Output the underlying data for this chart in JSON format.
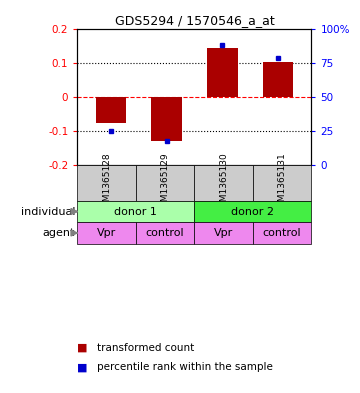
{
  "title": "GDS5294 / 1570546_a_at",
  "samples": [
    "GSM1365128",
    "GSM1365129",
    "GSM1365130",
    "GSM1365131"
  ],
  "red_values": [
    -0.075,
    -0.13,
    0.145,
    0.105
  ],
  "blue_values": [
    -0.1,
    -0.13,
    0.155,
    0.115
  ],
  "ylim": [
    -0.2,
    0.2
  ],
  "yticks_left": [
    -0.2,
    -0.1,
    0.0,
    0.1,
    0.2
  ],
  "ytick_labels_left": [
    "-0.2",
    "-0.1",
    "0",
    "0.1",
    "0.2"
  ],
  "ytick_labels_right": [
    "0",
    "25",
    "50",
    "75",
    "100%"
  ],
  "bar_color": "#aa0000",
  "dot_color": "#0000cc",
  "sample_bg": "#cccccc",
  "donor1_color": "#aaffaa",
  "donor2_color": "#44ee44",
  "agent_color": "#ee88ee",
  "individual_label": "individual",
  "agent_label": "agent",
  "donor1_text": "donor 1",
  "donor2_text": "donor 2",
  "agent_texts": [
    "Vpr",
    "control",
    "Vpr",
    "control"
  ],
  "legend_red": "transformed count",
  "legend_blue": "percentile rank within the sample",
  "bar_width": 0.55
}
